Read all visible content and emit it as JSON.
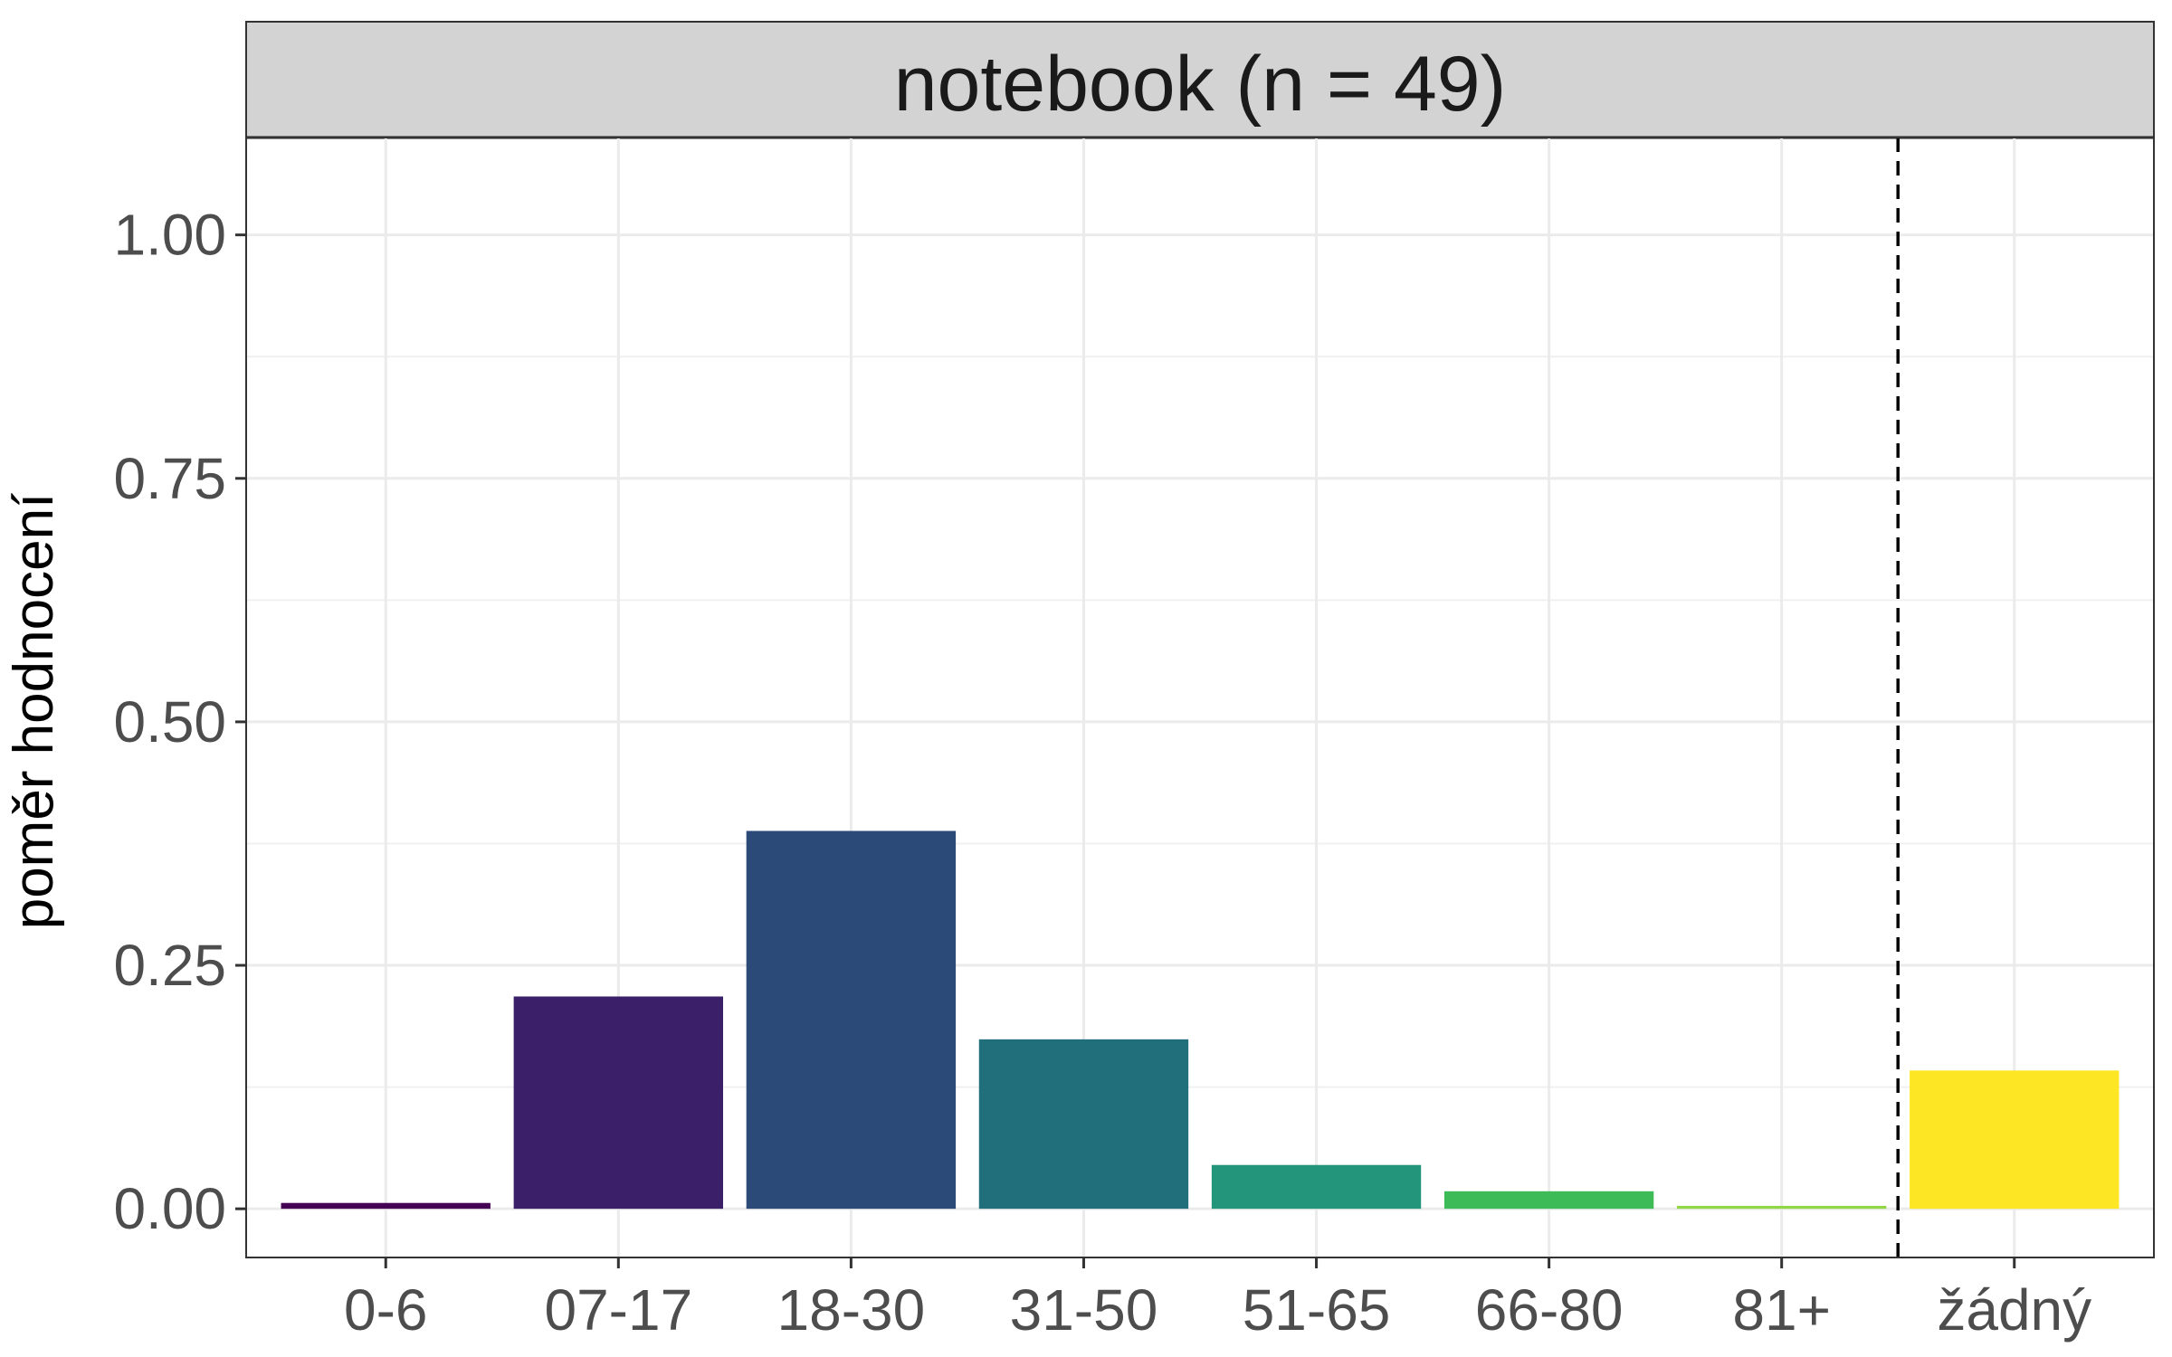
{
  "chart_data": {
    "type": "bar",
    "facet_title": "notebook (n = 49)",
    "ylabel": "poměr hodnocení",
    "xlabel": "",
    "categories": [
      "0-6",
      "07-17",
      "18-30",
      "31-50",
      "51-65",
      "66-80",
      "81+",
      "žádný"
    ],
    "values": [
      0.006,
      0.218,
      0.388,
      0.174,
      0.045,
      0.018,
      0.003,
      0.142
    ],
    "colors": [
      "#440154",
      "#3b1f68",
      "#2c4a78",
      "#216f7b",
      "#22957a",
      "#3dbb56",
      "#8fd744",
      "#fde725"
    ],
    "ylim": [
      -0.05,
      1.1
    ],
    "yticks": [
      0,
      0.25,
      0.5,
      0.75,
      1
    ],
    "ytick_labels": [
      "0.00",
      "0.25",
      "0.50",
      "0.75",
      "1.00"
    ],
    "reference_line": {
      "style": "dashed",
      "between_categories": [
        "81+",
        "žádný"
      ]
    },
    "grid": true,
    "legend": "none"
  }
}
